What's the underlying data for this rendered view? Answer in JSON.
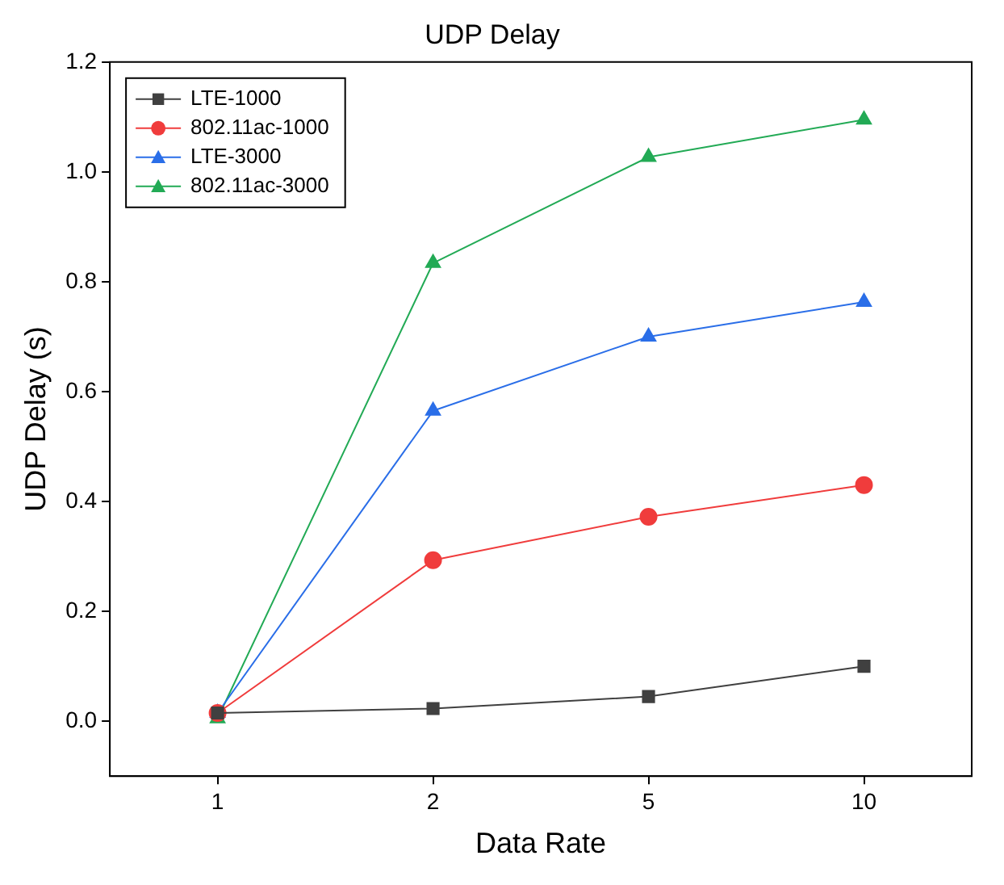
{
  "chart_data": {
    "type": "line",
    "title": "UDP Delay",
    "xlabel": "Data Rate",
    "ylabel": "UDP Delay (s)",
    "categories": [
      "1",
      "2",
      "5",
      "10"
    ],
    "series": [
      {
        "name": "LTE-1000",
        "color": "#404040",
        "marker": "square",
        "values": [
          0.015,
          0.023,
          0.045,
          0.1
        ]
      },
      {
        "name": "802.11ac-1000",
        "color": "#f03c3c",
        "marker": "circle",
        "values": [
          0.015,
          0.293,
          0.372,
          0.43
        ]
      },
      {
        "name": "LTE-3000",
        "color": "#2a6ee8",
        "marker": "triangle",
        "values": [
          0.015,
          0.565,
          0.7,
          0.763
        ]
      },
      {
        "name": "802.11ac-3000",
        "color": "#22aa55",
        "marker": "triangle",
        "values": [
          0.005,
          0.834,
          1.027,
          1.095
        ]
      }
    ],
    "ylim": [
      -0.1,
      1.2
    ],
    "yticks": [
      {
        "value": 0,
        "label": "0.0"
      },
      0.2,
      0.4,
      0.6,
      0.8,
      {
        "value": 1,
        "label": "1.0"
      },
      1.2
    ],
    "grid": false,
    "legend": "top left",
    "line_style": "solid"
  }
}
